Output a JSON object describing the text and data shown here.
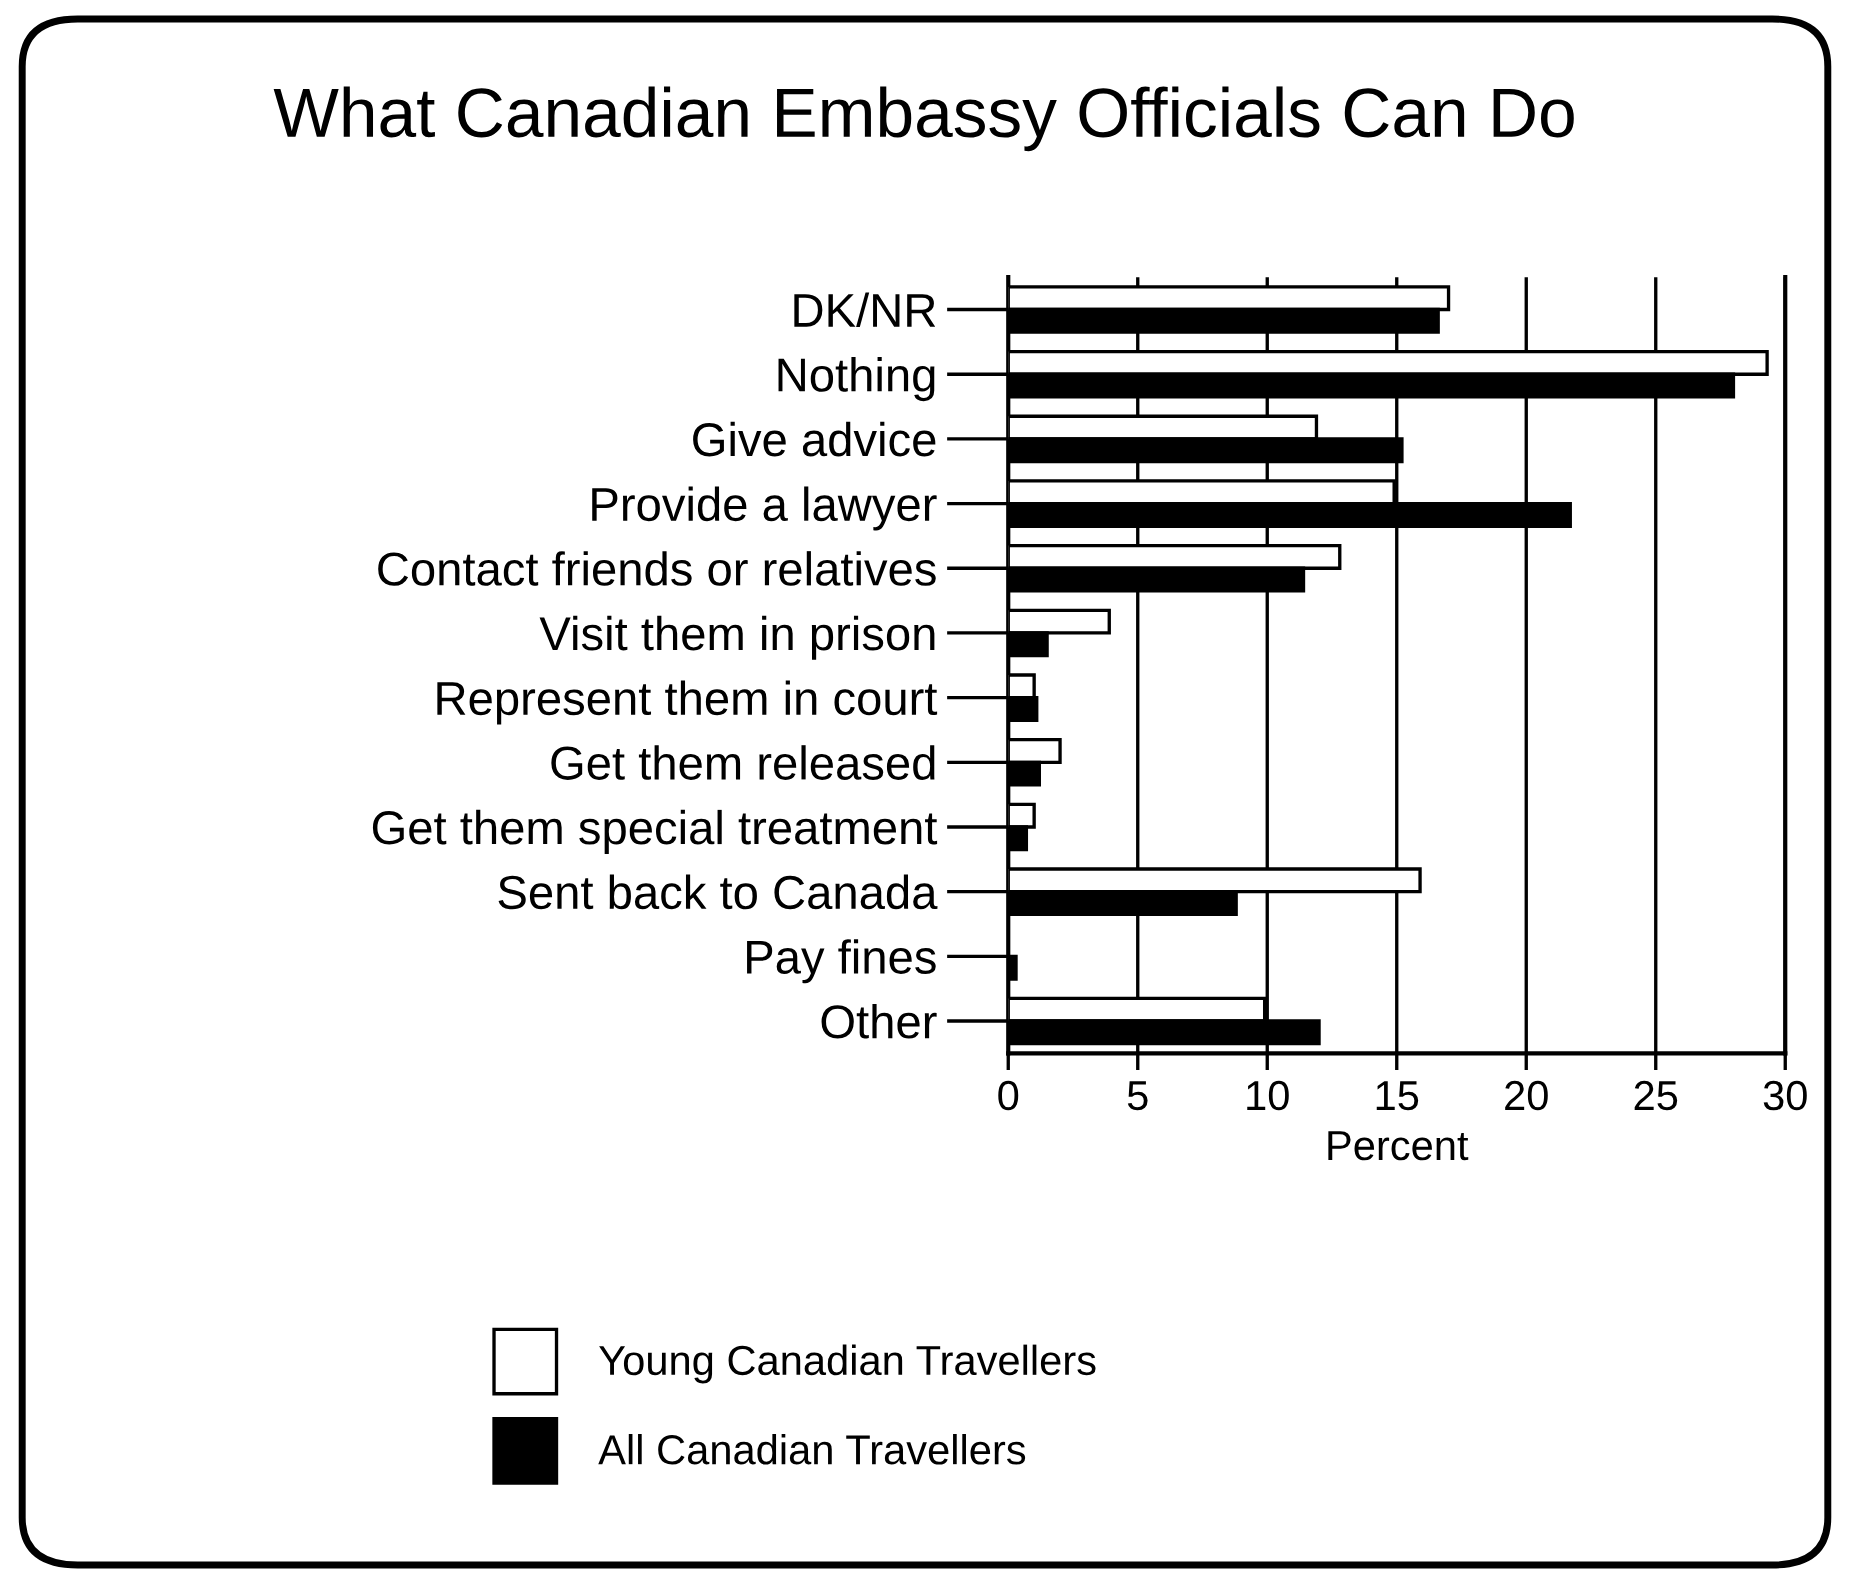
{
  "chart_data": {
    "type": "bar",
    "orientation": "horizontal",
    "title": "What Canadian Embassy Officials Can Do",
    "xlabel": "Percent",
    "categories": [
      "DK/NR",
      "Nothing",
      "Give advice",
      "Provide a lawyer",
      "Contact friends or relatives",
      "Visit them in prison",
      "Represent them in court",
      "Get them released",
      "Get them special treatment",
      "Sent back to Canada",
      "Pay fines",
      "Other"
    ],
    "series": [
      {
        "name": "Young Canadian Travellers",
        "color": "#ffffff",
        "values": [
          17.0,
          29.3,
          11.9,
          14.9,
          12.8,
          3.9,
          1.0,
          2.0,
          1.0,
          15.9,
          null,
          9.9
        ]
      },
      {
        "name": "All Canadian Travellers",
        "color": "#000000",
        "values": [
          16.6,
          28.0,
          15.2,
          21.7,
          11.4,
          1.5,
          1.1,
          1.2,
          0.7,
          8.8,
          0.3,
          12.0
        ]
      }
    ],
    "xlim": [
      0,
      30
    ],
    "xticks": [
      0,
      5,
      10,
      15,
      20,
      25,
      30
    ],
    "grid": "x",
    "legend": "bottom"
  }
}
